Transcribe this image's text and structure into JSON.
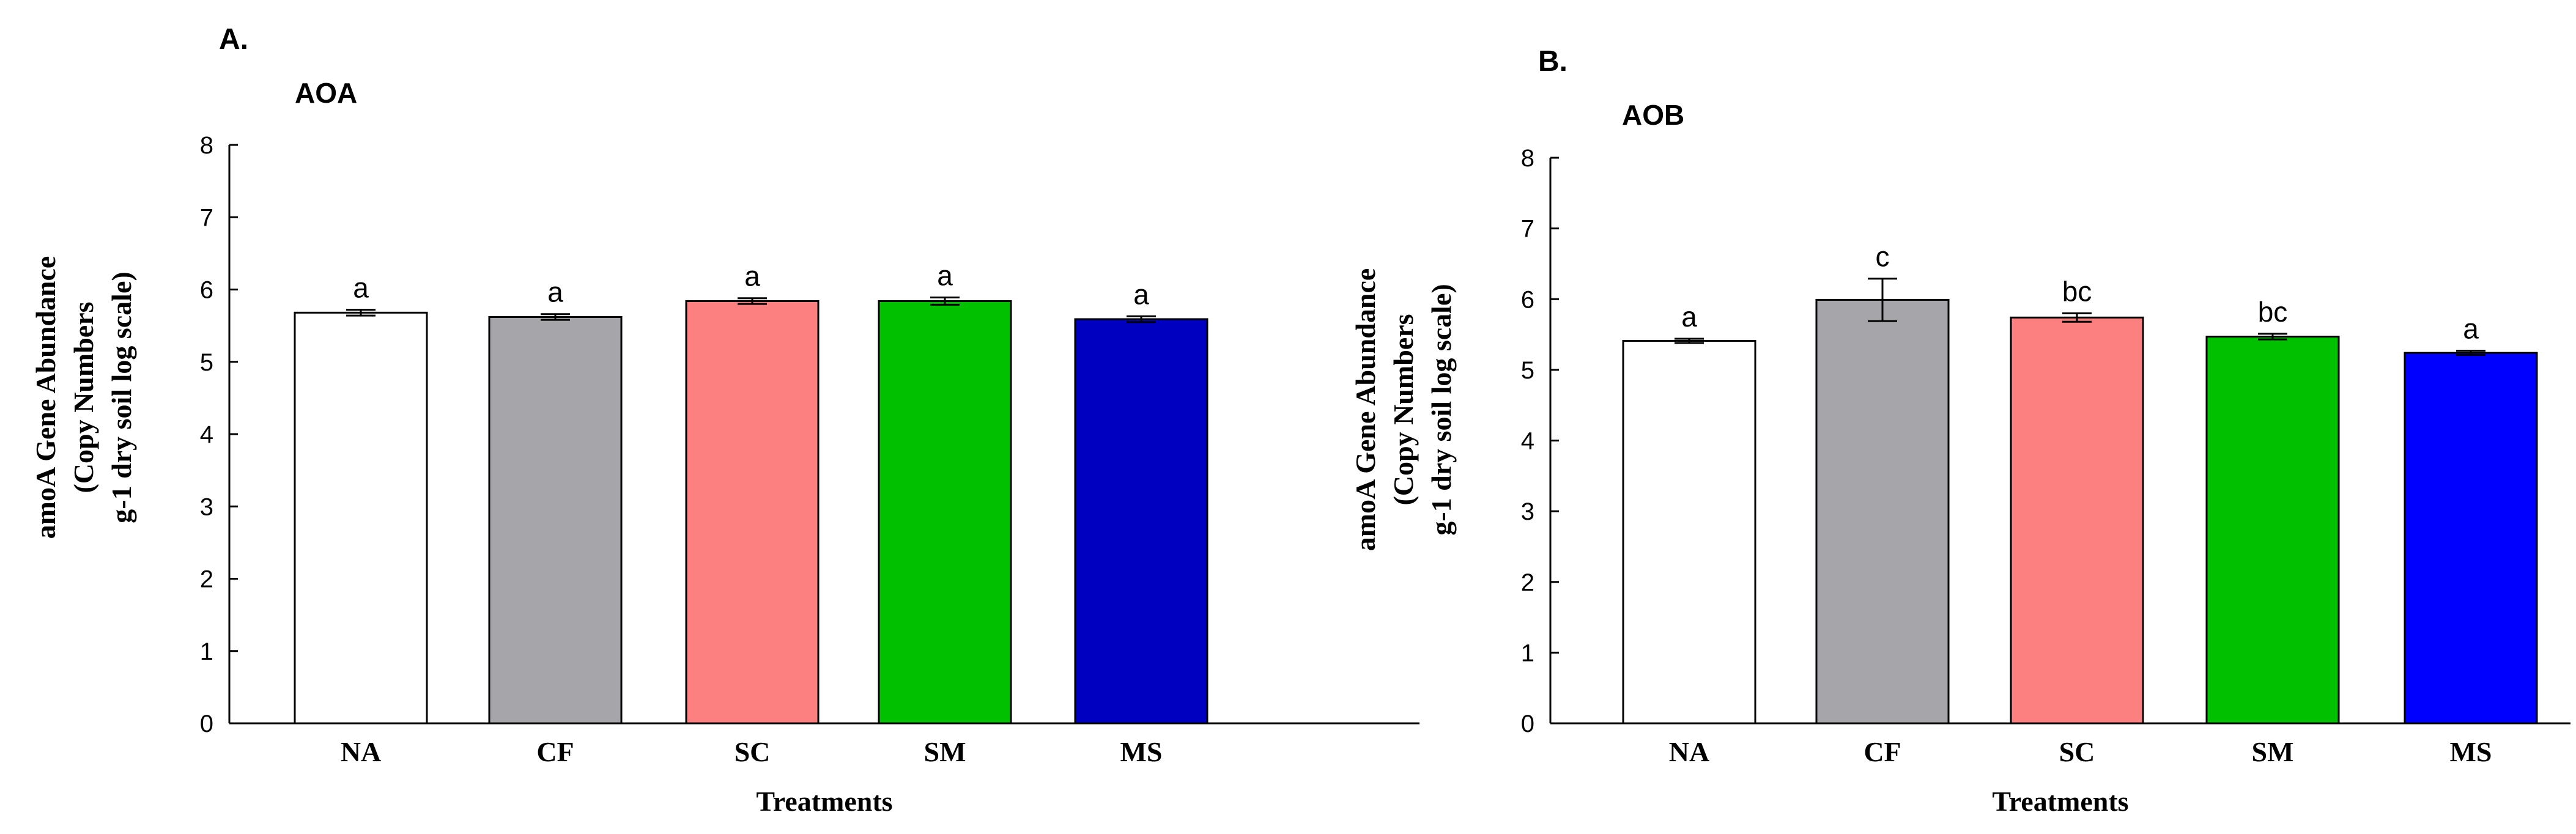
{
  "chart_data": [
    {
      "panel": "A.",
      "title": "AOA",
      "type": "bar",
      "categories": [
        "NA",
        "CF",
        "SC",
        "SM",
        "MS"
      ],
      "values": [
        5.68,
        5.62,
        5.84,
        5.84,
        5.59
      ],
      "errors": [
        0.04,
        0.04,
        0.04,
        0.05,
        0.04
      ],
      "significance": [
        "a",
        "a",
        "a",
        "a",
        "a"
      ],
      "colors": [
        "#ffffff",
        "#a6a6aa",
        "#fd8080",
        "#00c000",
        "#0000c0"
      ],
      "xlabel": "Treatments",
      "ylabel": [
        "amoA Gene Abundance",
        "(Copy Numbers",
        "g-1 dry soil log scale)"
      ],
      "ylim": [
        0,
        8
      ],
      "yticks": [
        "0",
        "1",
        "2",
        "3",
        "4",
        "5",
        "6",
        "7",
        "8"
      ],
      "grid": false
    },
    {
      "panel": "B.",
      "title": "AOB",
      "type": "bar",
      "categories": [
        "NA",
        "CF",
        "SC",
        "SM",
        "MS"
      ],
      "values": [
        5.41,
        5.99,
        5.74,
        5.47,
        5.24
      ],
      "errors": [
        0.03,
        0.3,
        0.06,
        0.04,
        0.03
      ],
      "significance": [
        "a",
        "c",
        "bc",
        "bc",
        "a"
      ],
      "colors": [
        "#ffffff",
        "#a6a6aa",
        "#fd8080",
        "#00c000",
        "#0000ff"
      ],
      "xlabel": "Treatments",
      "ylabel": [
        "amoA Gene Abundance",
        "(Copy Numbers",
        "g-1 dry soil log scale)"
      ],
      "ylim": [
        0,
        8
      ],
      "yticks": [
        "0",
        "1",
        "2",
        "3",
        "4",
        "5",
        "6",
        "7",
        "8"
      ],
      "grid": false
    }
  ]
}
